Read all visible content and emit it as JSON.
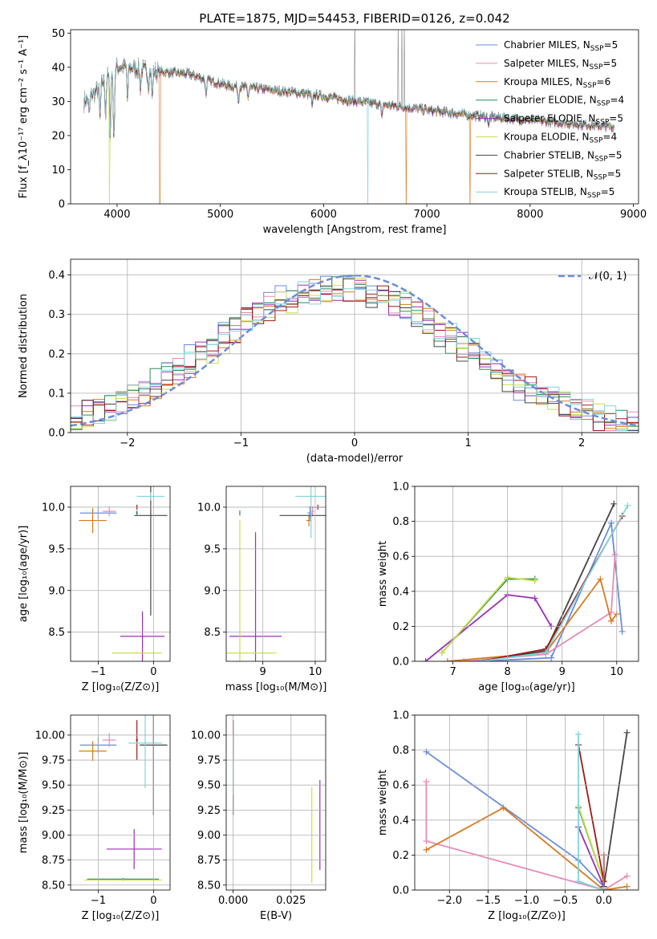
{
  "figure": {
    "title": "PLATE=1875, MJD=54453, FIBERID=0126, z=0.042",
    "colors": {
      "Chabrier MILES": "#6a8cdc",
      "Salpeter MILES": "#e88ab8",
      "Kroupa MILES": "#d97a1e",
      "Chabrier ELODIE": "#2e8b57",
      "Salpeter ELODIE": "#9b2fb8",
      "Kroupa ELODIE": "#c8e04a",
      "Chabrier STELIB": "#444444",
      "Salpeter STELIB": "#a01818",
      "Kroupa STELIB": "#7fd6dc",
      "normal": "#6a8cdc",
      "data": "#8a8a8a"
    }
  },
  "chart_data": [
    {
      "id": "spectrum",
      "type": "line",
      "xlabel": "wavelength [Angstrom, rest frame]",
      "ylabel": "Flux [f_λ10^-17 erg cm^-2 s^-1 A^-1]",
      "xlim": [
        3550,
        9050
      ],
      "ylim": [
        0,
        51
      ],
      "xticks": [
        4000,
        5000,
        6000,
        7000,
        8000,
        9000
      ],
      "yticks": [
        0,
        10,
        20,
        30,
        40,
        50
      ],
      "grid": false,
      "legend_position": "top-right",
      "series": [
        {
          "name": "Chabrier MILES, N_SSP=5",
          "model": "Chabrier MILES"
        },
        {
          "name": "Salpeter MILES, N_SSP=5",
          "model": "Salpeter MILES"
        },
        {
          "name": "Kroupa MILES, N_SSP=6",
          "model": "Kroupa MILES"
        },
        {
          "name": "Chabrier ELODIE, N_SSP=4",
          "model": "Chabrier ELODIE"
        },
        {
          "name": "Salpeter ELODIE, N_SSP=5",
          "model": "Salpeter ELODIE"
        },
        {
          "name": "Kroupa ELODIE, N_SSP=4",
          "model": "Kroupa ELODIE"
        },
        {
          "name": "Chabrier STELIB, N_SSP=5",
          "model": "Chabrier STELIB"
        },
        {
          "name": "Salpeter STELIB, N_SSP=5",
          "model": "Salpeter STELIB"
        },
        {
          "name": "Kroupa STELIB, N_SSP=5",
          "model": "Kroupa STELIB"
        }
      ],
      "continuum": [
        [
          3680,
          30
        ],
        [
          3800,
          33
        ],
        [
          3900,
          37
        ],
        [
          4000,
          40
        ],
        [
          4100,
          40
        ],
        [
          4300,
          39
        ],
        [
          4500,
          38.5
        ],
        [
          4700,
          38
        ],
        [
          4900,
          36
        ],
        [
          5100,
          34.5
        ],
        [
          5300,
          34
        ],
        [
          5600,
          33
        ],
        [
          5900,
          32
        ],
        [
          6200,
          30.5
        ],
        [
          6600,
          29
        ],
        [
          7000,
          27.5
        ],
        [
          7400,
          26
        ],
        [
          7800,
          25
        ],
        [
          8200,
          24
        ],
        [
          8600,
          23
        ],
        [
          8820,
          22.5
        ]
      ],
      "absorption_lines": [
        [
          3730,
          26
        ],
        [
          3835,
          25
        ],
        [
          3889,
          26
        ],
        [
          3934,
          20
        ],
        [
          3969,
          18
        ],
        [
          4102,
          30
        ],
        [
          4226,
          34
        ],
        [
          4304,
          35
        ],
        [
          4340,
          31
        ],
        [
          4861,
          32
        ],
        [
          5175,
          30
        ],
        [
          5270,
          31
        ],
        [
          5890,
          28
        ],
        [
          6563,
          25
        ],
        [
          7600,
          23
        ]
      ],
      "model_drops": [
        [
          3925,
          "Kroupa ELODIE"
        ],
        [
          4415,
          "Kroupa MILES"
        ],
        [
          6430,
          "Kroupa STELIB"
        ],
        [
          6800,
          "Kroupa MILES"
        ],
        [
          7420,
          "Kroupa MILES"
        ]
      ],
      "data_spikes": [
        6300,
        6720,
        6760,
        6780
      ]
    },
    {
      "id": "residuals",
      "type": "line",
      "xlabel": "(data-model)/error",
      "ylabel": "Normed distribution",
      "xlim": [
        -2.5,
        2.5
      ],
      "ylim": [
        0,
        0.44
      ],
      "xticks": [
        -2,
        -1,
        0,
        1,
        2
      ],
      "yticks": [
        0.0,
        0.1,
        0.2,
        0.3,
        0.4
      ],
      "grid": true,
      "legend_position": "top-right",
      "normal_label": "𝒩(0, 1)",
      "bin_width": 0.1
    },
    {
      "id": "age-vs-Z",
      "type": "scatter",
      "xlabel": "Z [log10(Z/Z⊙)]",
      "ylabel": "age  [log10(age/yr)]",
      "xlim": [
        -1.5,
        0.3
      ],
      "ylim": [
        8.15,
        10.25
      ],
      "xticks": [
        -1,
        0
      ],
      "yticks": [
        8.5,
        9.0,
        9.5,
        10.0
      ],
      "grid": true,
      "points": [
        {
          "model": "Chabrier MILES",
          "x": -1.0,
          "y": 9.93,
          "xerr": 0.33,
          "yerr": 0.08
        },
        {
          "model": "Salpeter MILES",
          "x": -0.8,
          "y": 9.95,
          "xerr": 0.12,
          "yerr": 0.06
        },
        {
          "model": "Kroupa MILES",
          "x": -1.1,
          "y": 9.84,
          "xerr": 0.25,
          "yerr": 0.15
        },
        {
          "model": "Chabrier ELODIE",
          "x": -0.3,
          "y": 9.93,
          "xerr": 0.02,
          "yerr": 0.03
        },
        {
          "model": "Salpeter ELODIE",
          "x": -0.2,
          "y": 8.45,
          "xerr": 0.4,
          "yerr": 0.3
        },
        {
          "model": "Kroupa ELODIE",
          "x": -0.3,
          "y": 8.25,
          "xerr": 0.45,
          "yerr": 0.01
        },
        {
          "model": "Chabrier STELIB",
          "x": -0.05,
          "y": 9.9,
          "xerr": 0.3,
          "yerr": 1.2
        },
        {
          "model": "Salpeter STELIB",
          "x": -0.3,
          "y": 10.0,
          "xerr": 0.02,
          "yerr": 0.03
        },
        {
          "model": "Kroupa STELIB",
          "x": -0.05,
          "y": 10.13,
          "xerr": 0.25,
          "yerr": 0.05
        }
      ]
    },
    {
      "id": "age-vs-mass",
      "type": "scatter",
      "xlabel": "mass [log10(M/M⊙)]",
      "ylabel": "",
      "xlim": [
        8.3,
        10.2
      ],
      "ylim": [
        8.15,
        10.25
      ],
      "xticks": [
        9,
        10
      ],
      "yticks": [
        8.5,
        9.0,
        9.5,
        10.0
      ],
      "grid": true,
      "points": [
        {
          "model": "Chabrier MILES",
          "x": 9.9,
          "y": 9.93,
          "xerr": 0.05,
          "yerr": 0.08
        },
        {
          "model": "Salpeter MILES",
          "x": 9.95,
          "y": 9.95,
          "xerr": 0.03,
          "yerr": 0.06
        },
        {
          "model": "Kroupa MILES",
          "x": 9.88,
          "y": 9.84,
          "xerr": 0.05,
          "yerr": 0.07
        },
        {
          "model": "Chabrier ELODIE",
          "x": 8.56,
          "y": 9.93,
          "xerr": 0.01,
          "yerr": 0.03
        },
        {
          "model": "Salpeter ELODIE",
          "x": 8.86,
          "y": 8.45,
          "xerr": 0.5,
          "yerr": 1.25
        },
        {
          "model": "Kroupa ELODIE",
          "x": 8.56,
          "y": 8.25,
          "xerr": 0.7,
          "yerr": 1.6
        },
        {
          "model": "Chabrier STELIB",
          "x": 9.92,
          "y": 9.9,
          "xerr": 0.6,
          "yerr": 0.02
        },
        {
          "model": "Salpeter STELIB",
          "x": 10.05,
          "y": 10.0,
          "xerr": 0.18,
          "yerr": 0.03
        },
        {
          "model": "Kroupa STELIB",
          "x": 9.92,
          "y": 10.13,
          "xerr": 0.3,
          "yerr": 0.5
        }
      ]
    },
    {
      "id": "weight-vs-age",
      "type": "line",
      "xlabel": "age  [log10(age/yr)]",
      "ylabel": "mass weight",
      "xlim": [
        6.3,
        10.4
      ],
      "ylim": [
        0,
        1
      ],
      "xticks": [
        7,
        8,
        9,
        10
      ],
      "yticks": [
        0.0,
        0.2,
        0.4,
        0.6,
        0.8,
        1.0
      ],
      "grid": true,
      "series": [
        {
          "model": "Chabrier MILES",
          "x": [
            7.5,
            8.8,
            9.9,
            10.1
          ],
          "y": [
            0.0,
            0.02,
            0.79,
            0.17
          ]
        },
        {
          "model": "Salpeter MILES",
          "x": [
            7.2,
            8.7,
            9.9,
            9.97
          ],
          "y": [
            0.0,
            0.04,
            0.28,
            0.61
          ]
        },
        {
          "model": "Kroupa MILES",
          "x": [
            6.9,
            8.7,
            9.7,
            9.9,
            10.0
          ],
          "y": [
            0.0,
            0.05,
            0.47,
            0.23,
            0.27
          ]
        },
        {
          "model": "Chabrier ELODIE",
          "x": [
            6.8,
            8.0,
            8.5
          ],
          "y": [
            0.05,
            0.47,
            0.47
          ]
        },
        {
          "model": "Salpeter ELODIE",
          "x": [
            6.5,
            8.0,
            8.5,
            8.8
          ],
          "y": [
            0.0,
            0.38,
            0.36,
            0.2
          ]
        },
        {
          "model": "Kroupa ELODIE",
          "x": [
            6.8,
            8.0,
            8.5
          ],
          "y": [
            0.05,
            0.48,
            0.46
          ]
        },
        {
          "model": "Chabrier STELIB",
          "x": [
            7.5,
            8.7,
            9.95
          ],
          "y": [
            0.0,
            0.06,
            0.9
          ]
        },
        {
          "model": "Salpeter STELIB",
          "x": [
            7.5,
            8.7,
            10.1
          ],
          "y": [
            0.0,
            0.07,
            0.83
          ]
        },
        {
          "model": "Kroupa STELIB",
          "x": [
            7.5,
            8.7,
            10.2
          ],
          "y": [
            0.0,
            0.05,
            0.89
          ]
        }
      ]
    },
    {
      "id": "mass-vs-Z",
      "type": "scatter",
      "xlabel": "Z [log10(Z/Z⊙)]",
      "ylabel": "mass [log10(M/M⊙)]",
      "xlim": [
        -1.5,
        0.3
      ],
      "ylim": [
        8.45,
        10.2
      ],
      "xticks": [
        -1,
        0
      ],
      "yticks": [
        8.5,
        8.75,
        9.0,
        9.25,
        9.5,
        9.75,
        10.0
      ],
      "grid": true,
      "points": [
        {
          "model": "Chabrier MILES",
          "x": -1.0,
          "y": 9.9,
          "xerr": 0.33,
          "yerr": 0.08
        },
        {
          "model": "Salpeter MILES",
          "x": -0.8,
          "y": 9.95,
          "xerr": 0.12,
          "yerr": 0.07
        },
        {
          "model": "Kroupa MILES",
          "x": -1.1,
          "y": 9.84,
          "xerr": 0.25,
          "yerr": 0.1
        },
        {
          "model": "Chabrier ELODIE",
          "x": -0.55,
          "y": 8.56,
          "xerr": 0.65,
          "yerr": 0.01
        },
        {
          "model": "Salpeter ELODIE",
          "x": -0.35,
          "y": 8.86,
          "xerr": 0.5,
          "yerr": 0.2
        },
        {
          "model": "Kroupa ELODIE",
          "x": -0.55,
          "y": 8.55,
          "xerr": 0.7,
          "yerr": 0.01
        },
        {
          "model": "Chabrier STELIB",
          "x": 0.0,
          "y": 9.9,
          "xerr": 0.25,
          "yerr": 0.7
        },
        {
          "model": "Salpeter STELIB",
          "x": -0.3,
          "y": 9.95,
          "xerr": 0.02,
          "yerr": 0.2
        },
        {
          "model": "Kroupa STELIB",
          "x": -0.15,
          "y": 9.92,
          "xerr": 0.3,
          "yerr": 0.45
        }
      ]
    },
    {
      "id": "mass-vs-EBV",
      "type": "scatter",
      "xlabel": "E(B-V)",
      "ylabel": "",
      "xlim": [
        -0.003,
        0.04
      ],
      "ylim": [
        8.45,
        10.2
      ],
      "xticks": [
        0.0,
        0.025
      ],
      "yticks": [
        8.5,
        8.75,
        9.0,
        9.25,
        9.5,
        9.75,
        10.0
      ],
      "grid": true,
      "points": [
        {
          "model": "Chabrier MILES",
          "x": 0.0,
          "y": 9.9,
          "xerr": 0.0,
          "yerr": 0.08
        },
        {
          "model": "Salpeter MILES",
          "x": 0.0,
          "y": 9.95,
          "xerr": 0.0,
          "yerr": 0.07
        },
        {
          "model": "Kroupa MILES",
          "x": 0.0,
          "y": 9.84,
          "xerr": 0.0,
          "yerr": 0.1
        },
        {
          "model": "Chabrier STELIB",
          "x": 0.0,
          "y": 9.6,
          "xerr": 0.0,
          "yerr": 0.4
        },
        {
          "model": "Salpeter STELIB",
          "x": 0.0,
          "y": 9.95,
          "xerr": 0.0,
          "yerr": 0.2
        },
        {
          "model": "Kroupa STELIB",
          "x": 0.0,
          "y": 9.7,
          "xerr": 0.0,
          "yerr": 0.3
        },
        {
          "model": "Kroupa ELODIE",
          "x": 0.034,
          "y": 9.0,
          "xerr": 0.0,
          "yerr": 0.48
        },
        {
          "model": "Salpeter ELODIE",
          "x": 0.0375,
          "y": 9.1,
          "xerr": 0.0,
          "yerr": 0.45
        }
      ]
    },
    {
      "id": "weight-vs-Z",
      "type": "line",
      "xlabel": "Z [log10(Z/Z⊙)]",
      "ylabel": "mass weight",
      "xlim": [
        -2.45,
        0.45
      ],
      "ylim": [
        0,
        1
      ],
      "xticks": [
        -2.0,
        -1.5,
        -1.0,
        -0.5,
        0.0
      ],
      "yticks": [
        0.0,
        0.2,
        0.4,
        0.6,
        0.8,
        1.0
      ],
      "grid": true,
      "series": [
        {
          "model": "Chabrier MILES",
          "x": [
            -2.3,
            -0.33,
            0.0
          ],
          "y": [
            0.79,
            0.17,
            0.02
          ]
        },
        {
          "model": "Salpeter MILES",
          "x": [
            -2.3,
            -2.3,
            0.0,
            0.3
          ],
          "y": [
            0.62,
            0.28,
            0.0,
            0.08
          ]
        },
        {
          "model": "Kroupa MILES",
          "x": [
            -2.3,
            -1.3,
            0.0,
            0.3
          ],
          "y": [
            0.23,
            0.47,
            0.0,
            0.02
          ]
        },
        {
          "model": "Chabrier ELODIE",
          "x": [
            -0.33,
            0.0
          ],
          "y": [
            0.47,
            0.05
          ]
        },
        {
          "model": "Salpeter ELODIE",
          "x": [
            -0.33,
            0.0
          ],
          "y": [
            0.36,
            0.02
          ]
        },
        {
          "model": "Kroupa ELODIE",
          "x": [
            -0.33,
            0.0
          ],
          "y": [
            0.48,
            0.05
          ]
        },
        {
          "model": "Chabrier STELIB",
          "x": [
            0.0,
            0.3
          ],
          "y": [
            0.02,
            0.9
          ]
        },
        {
          "model": "Salpeter STELIB",
          "x": [
            -0.33,
            0.0,
            0.0
          ],
          "y": [
            0.83,
            0.05,
            0.2
          ]
        },
        {
          "model": "Kroupa STELIB",
          "x": [
            -0.33,
            -0.33,
            0.0
          ],
          "y": [
            0.89,
            0.05,
            0.0
          ]
        }
      ]
    }
  ]
}
